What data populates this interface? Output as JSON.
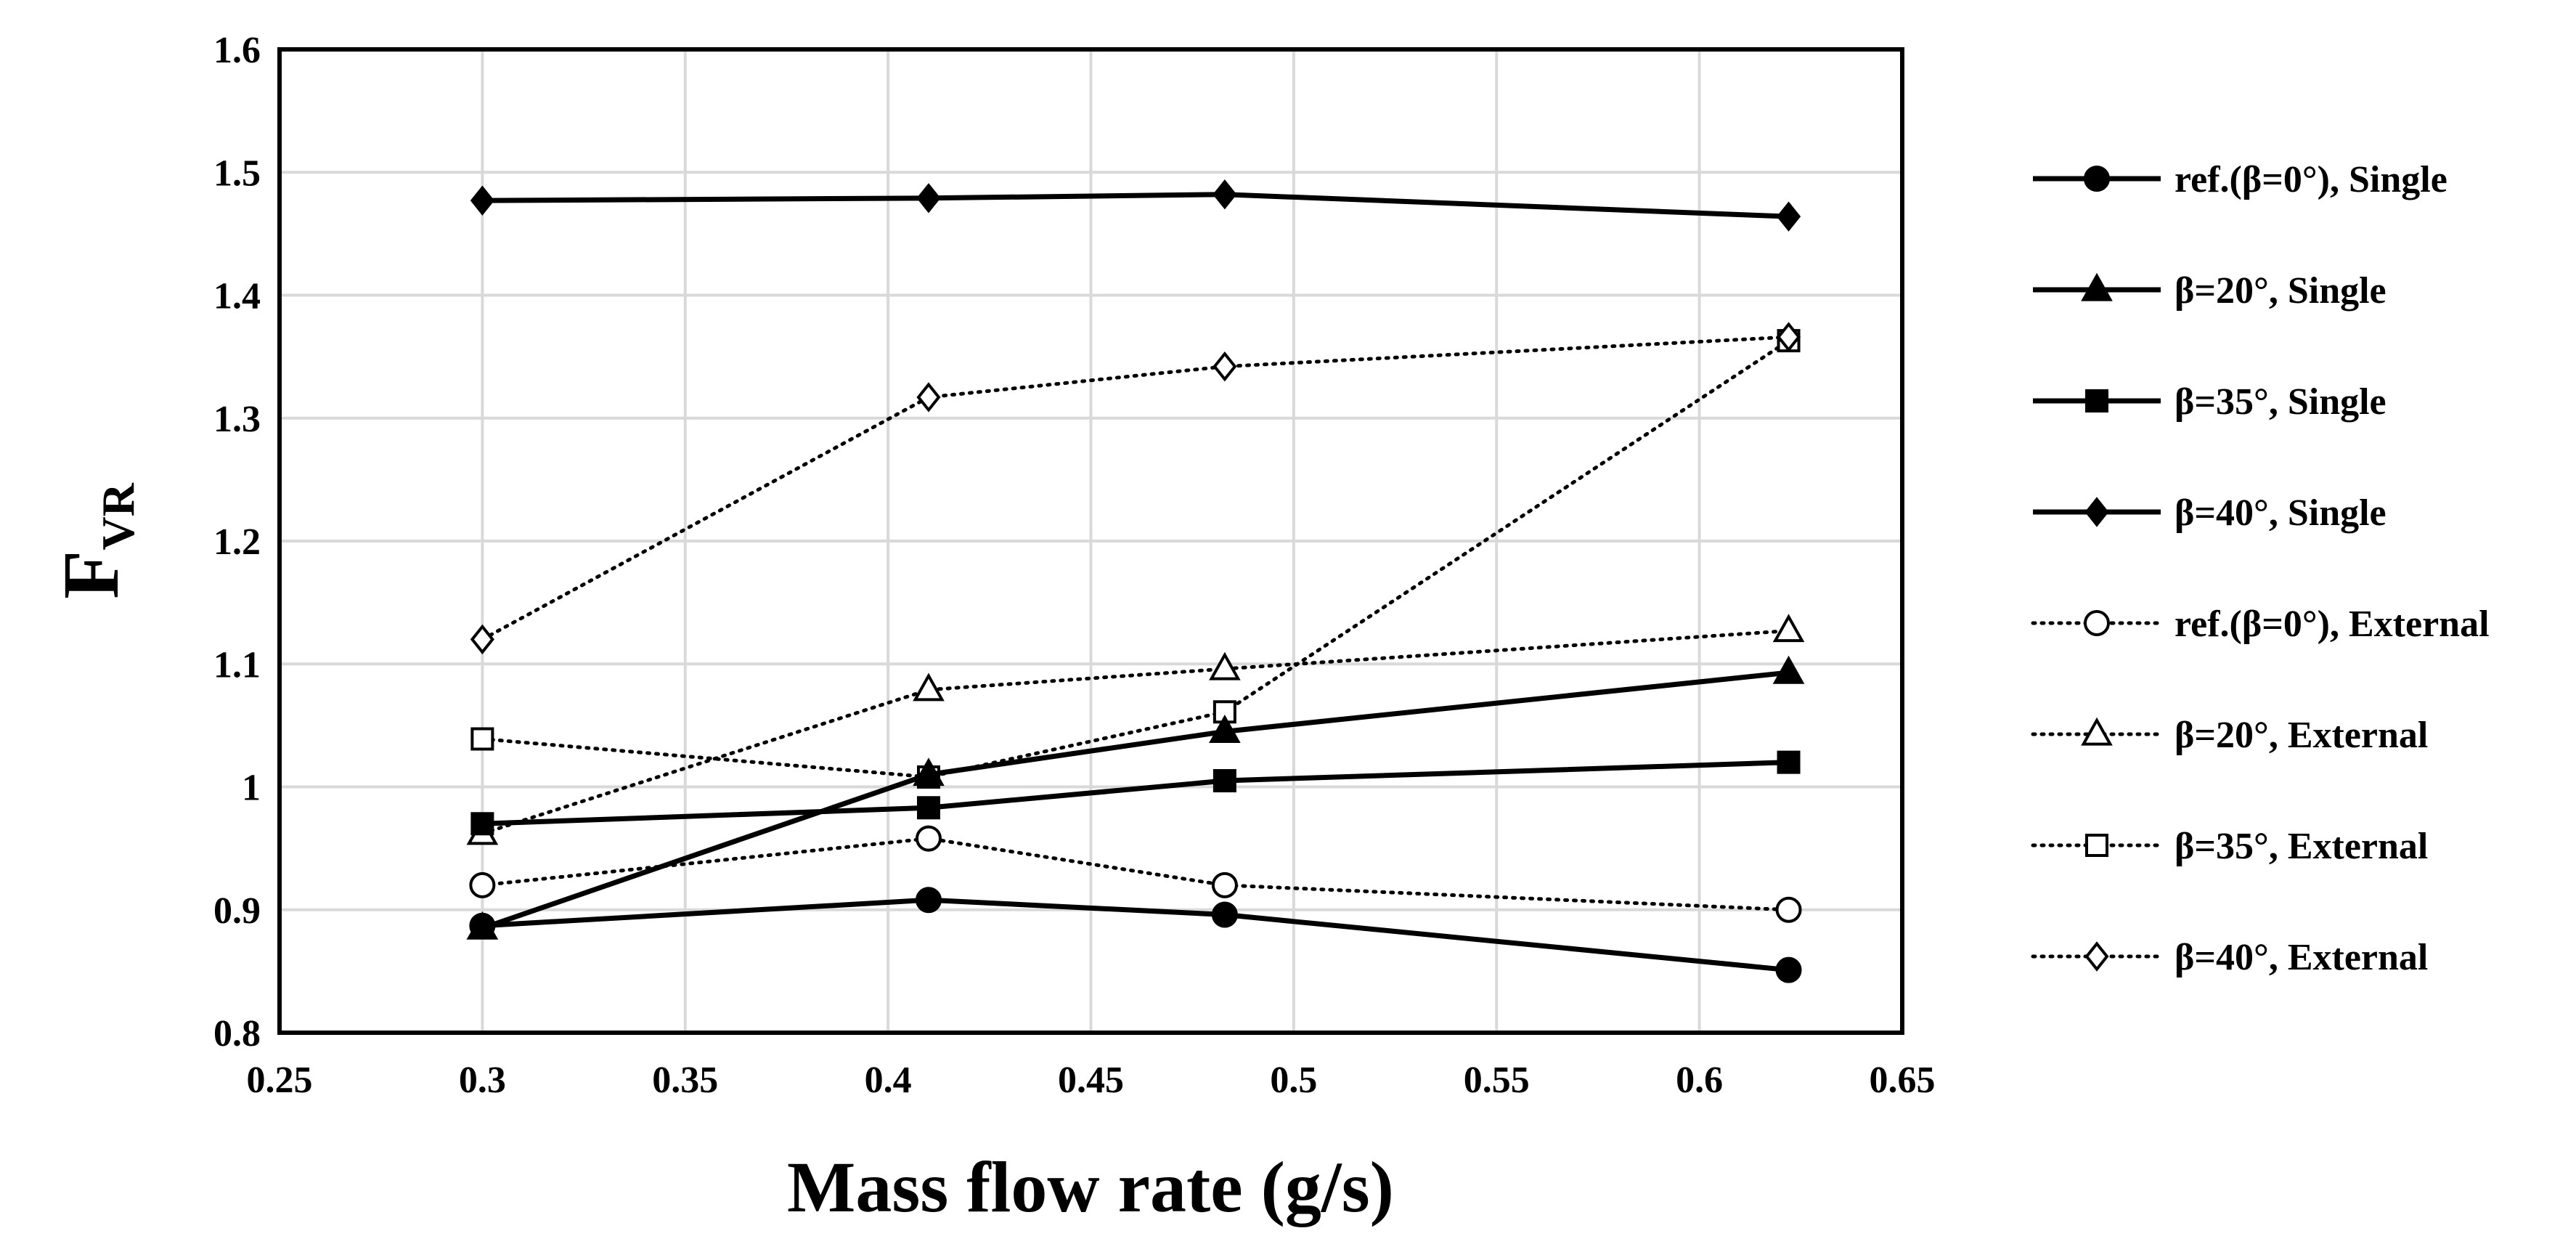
{
  "chart_data": {
    "type": "line",
    "title": "",
    "xlabel": "Mass flow rate (g/s)",
    "ylabel": {
      "main": "F",
      "sub": "VR"
    },
    "xlim": [
      0.25,
      0.65
    ],
    "ylim": [
      0.8,
      1.6
    ],
    "xticks": [
      0.25,
      0.3,
      0.35,
      0.4,
      0.45,
      0.5,
      0.55,
      0.6,
      0.65
    ],
    "xtick_labels": [
      "0.25",
      "0.3",
      "0.35",
      "0.4",
      "0.45",
      "0.5",
      "0.55",
      "0.6",
      "0.65"
    ],
    "yticks": [
      0.8,
      0.9,
      1.0,
      1.1,
      1.2,
      1.3,
      1.4,
      1.5,
      1.6
    ],
    "ytick_labels": [
      "0.8",
      "0.9",
      "1",
      "1.1",
      "1.2",
      "1.3",
      "1.4",
      "1.5",
      "1.6"
    ],
    "grid": true,
    "legend_position": "right",
    "x": [
      0.3,
      0.41,
      0.483,
      0.622
    ],
    "series": [
      {
        "name": "ref.(β=0°), Single",
        "marker": "circle",
        "filled": true,
        "line": "solid",
        "values": [
          0.887,
          0.908,
          0.896,
          0.851
        ]
      },
      {
        "name": "β=20°, Single",
        "marker": "triangle",
        "filled": true,
        "line": "solid",
        "values": [
          0.885,
          1.01,
          1.045,
          1.093
        ]
      },
      {
        "name": "β=35°, Single",
        "marker": "square",
        "filled": true,
        "line": "solid",
        "values": [
          0.97,
          0.983,
          1.005,
          1.02
        ]
      },
      {
        "name": "β=40°, Single",
        "marker": "diamond",
        "filled": true,
        "line": "solid",
        "values": [
          1.477,
          1.479,
          1.482,
          1.464
        ]
      },
      {
        "name": "ref.(β=0°), External",
        "marker": "circle",
        "filled": false,
        "line": "dotted",
        "values": [
          0.92,
          0.958,
          0.92,
          0.9
        ]
      },
      {
        "name": "β=20°, External",
        "marker": "triangle",
        "filled": false,
        "line": "dotted",
        "values": [
          0.962,
          1.079,
          1.096,
          1.127
        ]
      },
      {
        "name": "β=35°, External",
        "marker": "square",
        "filled": false,
        "line": "dotted",
        "values": [
          1.039,
          1.008,
          1.061,
          1.363
        ]
      },
      {
        "name": "β=40°, External",
        "marker": "diamond",
        "filled": false,
        "line": "dotted",
        "values": [
          1.12,
          1.317,
          1.342,
          1.366
        ]
      }
    ]
  }
}
